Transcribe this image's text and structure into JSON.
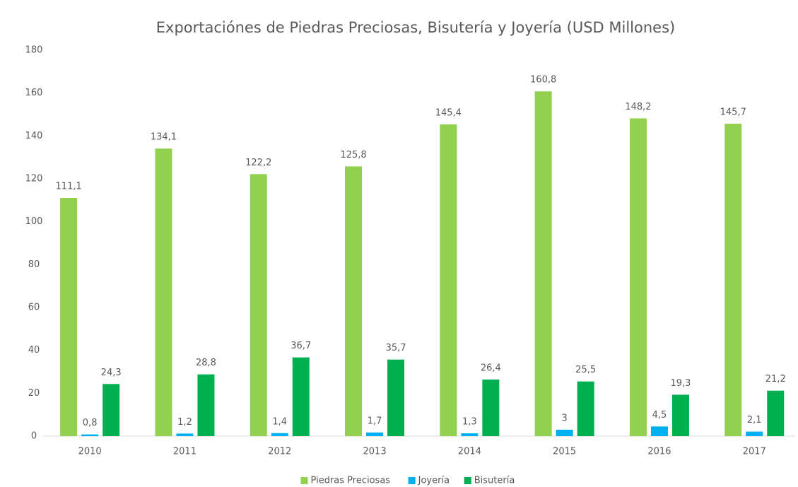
{
  "chart_data": {
    "type": "bar",
    "title": "Exportaciónes de Piedras Preciosas, Bisutería y Joyería (USD Millones)",
    "categories": [
      "2010",
      "2011",
      "2012",
      "2013",
      "2014",
      "2015",
      "2016",
      "2017"
    ],
    "series": [
      {
        "name": "Piedras Preciosas",
        "color": "#92d050",
        "values": [
          111.1,
          134.1,
          122.2,
          125.8,
          145.4,
          160.8,
          148.2,
          145.7
        ],
        "value_labels": [
          "111,1",
          "134,1",
          "122,2",
          "125,8",
          "145,4",
          "160,8",
          "148,2",
          "145,7"
        ]
      },
      {
        "name": "Joyería",
        "color": "#00b0f0",
        "values": [
          0.8,
          1.2,
          1.4,
          1.7,
          1.3,
          3,
          4.5,
          2.1
        ],
        "value_labels": [
          "0,8",
          "1,2",
          "1,4",
          "1,7",
          "1,3",
          "3",
          "4,5",
          "2,1"
        ]
      },
      {
        "name": "Bisutería",
        "color": "#00b050",
        "values": [
          24.3,
          28.8,
          36.7,
          35.7,
          26.4,
          25.5,
          19.3,
          21.2
        ],
        "value_labels": [
          "24,3",
          "28,8",
          "36,7",
          "35,7",
          "26,4",
          "25,5",
          "19,3",
          "21,2"
        ]
      }
    ],
    "ylim": [
      0,
      180
    ],
    "yticks": [
      0,
      20,
      40,
      60,
      80,
      100,
      120,
      140,
      160,
      180
    ],
    "grid": false,
    "legend": "bottom"
  }
}
